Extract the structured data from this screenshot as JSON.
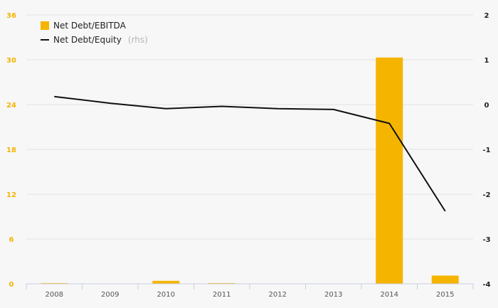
{
  "chart_data": {
    "type": "bar+line",
    "categories": [
      "2008",
      "2009",
      "2010",
      "2011",
      "2012",
      "2013",
      "2014",
      "2015"
    ],
    "series": [
      {
        "name": "Net Debt/EBITDA",
        "type": "bar",
        "axis": "left",
        "color": "#f5b400",
        "values": [
          0.1,
          0.0,
          0.4,
          0.1,
          0.0,
          0.0,
          30.3,
          1.1
        ]
      },
      {
        "name": "Net Debt/Equity",
        "suffix": "(rhs)",
        "type": "line",
        "axis": "right",
        "color": "#111111",
        "values": [
          0.18,
          0.03,
          -0.09,
          -0.04,
          -0.09,
          -0.11,
          -0.42,
          -2.38
        ]
      }
    ],
    "y_left": {
      "min": 0,
      "max": 36,
      "ticks": [
        "0",
        "6",
        "12",
        "18",
        "24",
        "30",
        "36"
      ]
    },
    "y_right": {
      "min": -4,
      "max": 2,
      "ticks": [
        "-4",
        "-3",
        "-2",
        "-1",
        "0",
        "1",
        "2"
      ]
    },
    "grid": true,
    "legend_position": "top-left",
    "title": "",
    "xlabel": "",
    "ylabel": ""
  }
}
